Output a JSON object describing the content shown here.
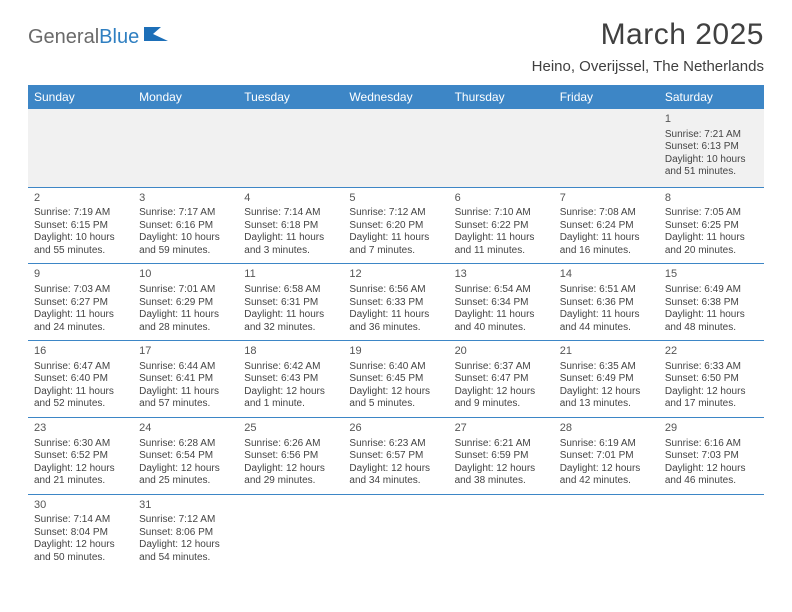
{
  "logo": {
    "text_gray": "General",
    "text_blue": "Blue"
  },
  "title": "March 2025",
  "location": "Heino, Overijssel, The Netherlands",
  "colors": {
    "header_bg": "#3d86c6",
    "header_text": "#ffffff",
    "row_border": "#3d86c6",
    "first_row_bg": "#f1f1f1",
    "body_text": "#444444",
    "title_text": "#404040",
    "logo_gray": "#6a6a6a",
    "logo_blue": "#2f7fc1"
  },
  "day_headers": [
    "Sunday",
    "Monday",
    "Tuesday",
    "Wednesday",
    "Thursday",
    "Friday",
    "Saturday"
  ],
  "weeks": [
    [
      null,
      null,
      null,
      null,
      null,
      null,
      {
        "d": "1",
        "sr": "7:21 AM",
        "ss": "6:13 PM",
        "dl": "10 hours and 51 minutes."
      }
    ],
    [
      {
        "d": "2",
        "sr": "7:19 AM",
        "ss": "6:15 PM",
        "dl": "10 hours and 55 minutes."
      },
      {
        "d": "3",
        "sr": "7:17 AM",
        "ss": "6:16 PM",
        "dl": "10 hours and 59 minutes."
      },
      {
        "d": "4",
        "sr": "7:14 AM",
        "ss": "6:18 PM",
        "dl": "11 hours and 3 minutes."
      },
      {
        "d": "5",
        "sr": "7:12 AM",
        "ss": "6:20 PM",
        "dl": "11 hours and 7 minutes."
      },
      {
        "d": "6",
        "sr": "7:10 AM",
        "ss": "6:22 PM",
        "dl": "11 hours and 11 minutes."
      },
      {
        "d": "7",
        "sr": "7:08 AM",
        "ss": "6:24 PM",
        "dl": "11 hours and 16 minutes."
      },
      {
        "d": "8",
        "sr": "7:05 AM",
        "ss": "6:25 PM",
        "dl": "11 hours and 20 minutes."
      }
    ],
    [
      {
        "d": "9",
        "sr": "7:03 AM",
        "ss": "6:27 PM",
        "dl": "11 hours and 24 minutes."
      },
      {
        "d": "10",
        "sr": "7:01 AM",
        "ss": "6:29 PM",
        "dl": "11 hours and 28 minutes."
      },
      {
        "d": "11",
        "sr": "6:58 AM",
        "ss": "6:31 PM",
        "dl": "11 hours and 32 minutes."
      },
      {
        "d": "12",
        "sr": "6:56 AM",
        "ss": "6:33 PM",
        "dl": "11 hours and 36 minutes."
      },
      {
        "d": "13",
        "sr": "6:54 AM",
        "ss": "6:34 PM",
        "dl": "11 hours and 40 minutes."
      },
      {
        "d": "14",
        "sr": "6:51 AM",
        "ss": "6:36 PM",
        "dl": "11 hours and 44 minutes."
      },
      {
        "d": "15",
        "sr": "6:49 AM",
        "ss": "6:38 PM",
        "dl": "11 hours and 48 minutes."
      }
    ],
    [
      {
        "d": "16",
        "sr": "6:47 AM",
        "ss": "6:40 PM",
        "dl": "11 hours and 52 minutes."
      },
      {
        "d": "17",
        "sr": "6:44 AM",
        "ss": "6:41 PM",
        "dl": "11 hours and 57 minutes."
      },
      {
        "d": "18",
        "sr": "6:42 AM",
        "ss": "6:43 PM",
        "dl": "12 hours and 1 minute."
      },
      {
        "d": "19",
        "sr": "6:40 AM",
        "ss": "6:45 PM",
        "dl": "12 hours and 5 minutes."
      },
      {
        "d": "20",
        "sr": "6:37 AM",
        "ss": "6:47 PM",
        "dl": "12 hours and 9 minutes."
      },
      {
        "d": "21",
        "sr": "6:35 AM",
        "ss": "6:49 PM",
        "dl": "12 hours and 13 minutes."
      },
      {
        "d": "22",
        "sr": "6:33 AM",
        "ss": "6:50 PM",
        "dl": "12 hours and 17 minutes."
      }
    ],
    [
      {
        "d": "23",
        "sr": "6:30 AM",
        "ss": "6:52 PM",
        "dl": "12 hours and 21 minutes."
      },
      {
        "d": "24",
        "sr": "6:28 AM",
        "ss": "6:54 PM",
        "dl": "12 hours and 25 minutes."
      },
      {
        "d": "25",
        "sr": "6:26 AM",
        "ss": "6:56 PM",
        "dl": "12 hours and 29 minutes."
      },
      {
        "d": "26",
        "sr": "6:23 AM",
        "ss": "6:57 PM",
        "dl": "12 hours and 34 minutes."
      },
      {
        "d": "27",
        "sr": "6:21 AM",
        "ss": "6:59 PM",
        "dl": "12 hours and 38 minutes."
      },
      {
        "d": "28",
        "sr": "6:19 AM",
        "ss": "7:01 PM",
        "dl": "12 hours and 42 minutes."
      },
      {
        "d": "29",
        "sr": "6:16 AM",
        "ss": "7:03 PM",
        "dl": "12 hours and 46 minutes."
      }
    ],
    [
      {
        "d": "30",
        "sr": "7:14 AM",
        "ss": "8:04 PM",
        "dl": "12 hours and 50 minutes."
      },
      {
        "d": "31",
        "sr": "7:12 AM",
        "ss": "8:06 PM",
        "dl": "12 hours and 54 minutes."
      },
      null,
      null,
      null,
      null,
      null
    ]
  ],
  "labels": {
    "sunrise": "Sunrise: ",
    "sunset": "Sunset: ",
    "daylight": "Daylight: "
  }
}
